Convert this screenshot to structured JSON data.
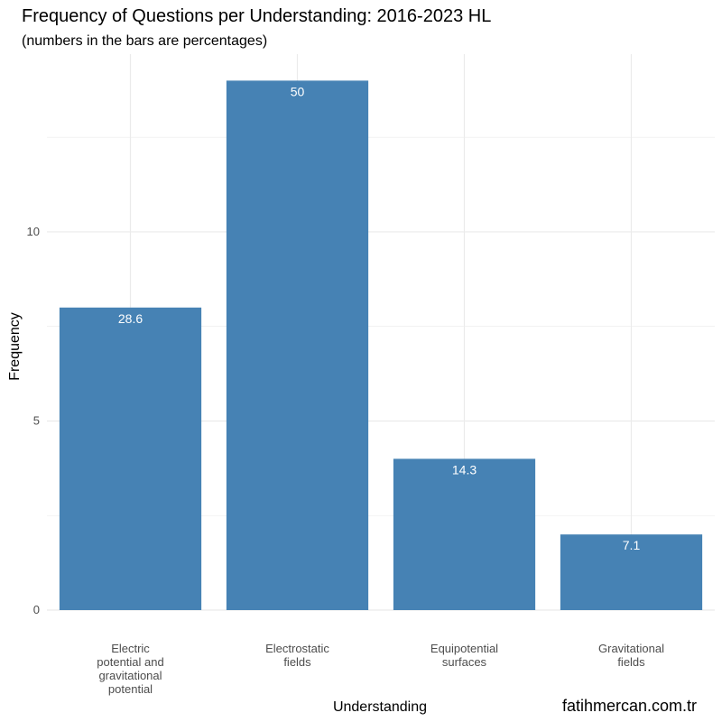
{
  "chart_data": {
    "type": "bar",
    "title": "Frequency of Questions per Understanding: 2016-2023 HL",
    "subtitle": "(numbers in the bars are percentages)",
    "xlabel": "Understanding",
    "ylabel": "Frequency",
    "caption": "fatihmercan.com.tr",
    "categories": [
      [
        "Electric",
        "potential and",
        "gravitational",
        "potential"
      ],
      [
        "Electrostatic",
        "fields"
      ],
      [
        "Equipotential",
        "surfaces"
      ],
      [
        "Gravitational",
        "fields"
      ]
    ],
    "values": [
      8,
      14,
      4,
      2
    ],
    "bar_labels": [
      "28.6",
      "50",
      "14.3",
      "7.1"
    ],
    "yticks": [
      0,
      5,
      10
    ],
    "ylim": [
      0,
      14.7
    ],
    "grid": true,
    "bar_color": "#4682b4",
    "grid_color": "#ebebeb"
  }
}
